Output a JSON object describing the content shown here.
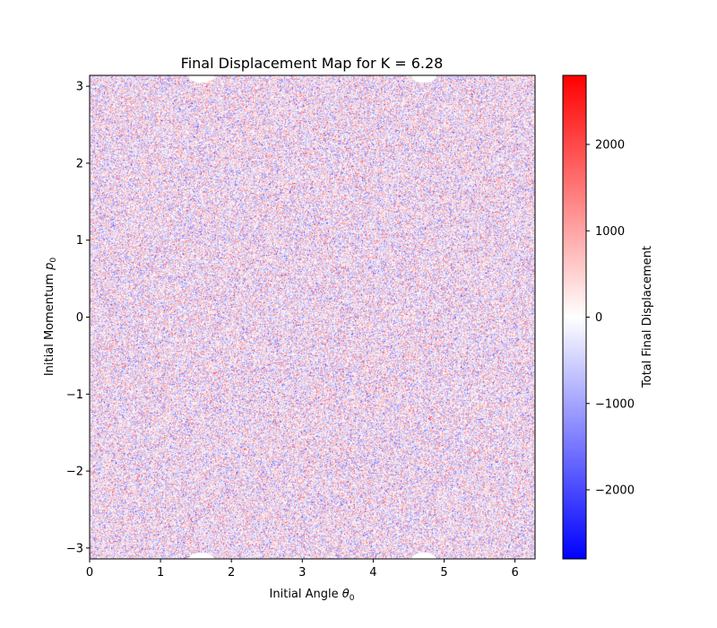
{
  "chart_data": {
    "type": "heatmap",
    "title": "Final Displacement Map for K = 6.28",
    "xlabel": {
      "text": "Initial Angle ",
      "symbol": "θ",
      "subscript": "0"
    },
    "ylabel": {
      "text": "Initial Momentum ",
      "symbol": "p",
      "subscript": "0"
    },
    "xlim": [
      0,
      6.2832
    ],
    "ylim": [
      -3.1416,
      3.1416
    ],
    "x_ticks": [
      0,
      1,
      2,
      3,
      4,
      5,
      6
    ],
    "x_tick_labels": [
      "0",
      "1",
      "2",
      "3",
      "4",
      "5",
      "6"
    ],
    "y_ticks": [
      -3,
      -2,
      -1,
      0,
      1,
      2,
      3
    ],
    "y_tick_labels": [
      "−3",
      "−2",
      "−1",
      "0",
      "1",
      "2",
      "3"
    ],
    "colormap": "bwr",
    "colormap_colors": [
      "#0000ff",
      "#ffffff",
      "#ff0000"
    ],
    "color_range": [
      -2800,
      2800
    ],
    "typical_value_spread": 700,
    "islands": {
      "value": null,
      "color": "#ffffff",
      "centers": [
        [
          1.57,
          3.1416
        ],
        [
          4.71,
          3.1416
        ],
        [
          1.57,
          -3.1416
        ],
        [
          4.71,
          -3.1416
        ]
      ]
    },
    "colorbar": {
      "label": "Total Final Displacement",
      "ticks": [
        -2000,
        -1000,
        0,
        1000,
        2000
      ],
      "tick_labels": [
        "−2000",
        "−1000",
        "0",
        "1000",
        "2000"
      ]
    },
    "grid": false
  }
}
